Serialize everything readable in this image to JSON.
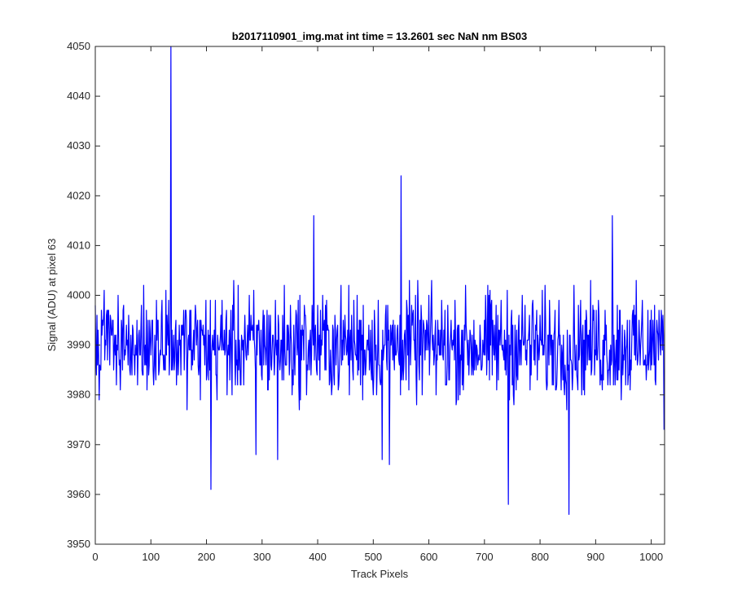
{
  "chart_data": {
    "type": "line",
    "title": "b2017110901_img.mat int time = 13.2601 sec  NaN nm BS03",
    "xlabel": "Track Pixels",
    "ylabel": "Signal (ADU) at pixel 63",
    "xlim": [
      0,
      1024
    ],
    "ylim": [
      3950,
      4050
    ],
    "xticks": [
      0,
      100,
      200,
      300,
      400,
      500,
      600,
      700,
      800,
      900,
      1000
    ],
    "yticks": [
      3950,
      3960,
      3970,
      3980,
      3990,
      4000,
      4010,
      4020,
      4030,
      4040,
      4050
    ],
    "grid": false,
    "legend": "none",
    "series_color": "#0000ff",
    "series": [
      {
        "values_note": "noisy signal around ~3990 ADU; explicit extreme points listed in key_points",
        "baseline_mean": 3990,
        "noise_amplitude": 7.5,
        "n_points": 1024,
        "key_points": [
          {
            "x": 136,
            "y": 4050
          },
          {
            "x": 137,
            "y": 3985
          },
          {
            "x": 208,
            "y": 3961
          },
          {
            "x": 289,
            "y": 3968
          },
          {
            "x": 328,
            "y": 3967
          },
          {
            "x": 393,
            "y": 4016
          },
          {
            "x": 516,
            "y": 3967
          },
          {
            "x": 529,
            "y": 3966
          },
          {
            "x": 550,
            "y": 4024
          },
          {
            "x": 743,
            "y": 3958
          },
          {
            "x": 852,
            "y": 3956
          },
          {
            "x": 930,
            "y": 4016
          },
          {
            "x": 1023,
            "y": 3973
          }
        ]
      }
    ]
  }
}
